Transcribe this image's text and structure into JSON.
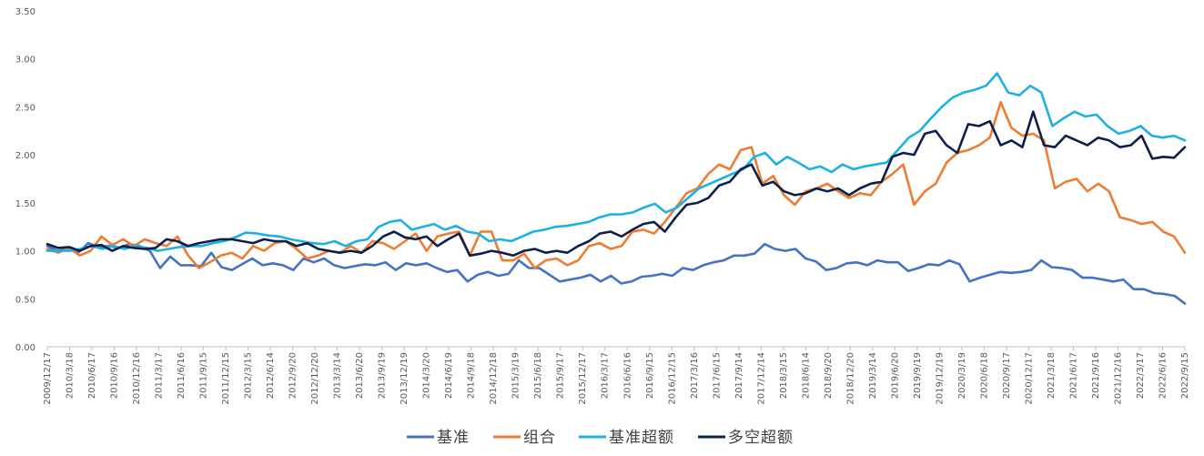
{
  "chart_data": {
    "type": "line",
    "title": "",
    "xlabel": "",
    "ylabel": "",
    "ylim": [
      0,
      3.5
    ],
    "y_ticks": [
      "0.00",
      "0.50",
      "1.00",
      "1.50",
      "2.00",
      "2.50",
      "3.00",
      "3.50"
    ],
    "grid": false,
    "legend_position": "bottom",
    "x_tick_labels": [
      "2009/12/17",
      "2010/3/18",
      "2010/6/17",
      "2010/9/16",
      "2010/12/16",
      "2011/3/17",
      "2011/6/16",
      "2011/9/15",
      "2011/12/15",
      "2012/3/15",
      "2012/6/14",
      "2012/9/20",
      "2012/12/20",
      "2013/3/14",
      "2013/6/20",
      "2013/9/19",
      "2013/12/19",
      "2014/3/20",
      "2014/6/19",
      "2014/9/18",
      "2014/12/18",
      "2015/3/19",
      "2015/6/18",
      "2015/9/17",
      "2015/12/17",
      "2016/3/17",
      "2016/6/16",
      "2016/9/15",
      "2016/12/15",
      "2017/3/16",
      "2017/6/15",
      "2017/9/14",
      "2017/12/14",
      "2018/3/15",
      "2018/6/14",
      "2018/9/20",
      "2018/12/20",
      "2019/3/14",
      "2019/6/20",
      "2019/9/19",
      "2019/12/19",
      "2020/3/19",
      "2020/6/18",
      "2020/9/17",
      "2020/12/17",
      "2021/3/18",
      "2021/6/17",
      "2021/9/16",
      "2021/12/16",
      "2022/3/17",
      "2022/6/16",
      "2022/9/15"
    ],
    "series": [
      {
        "name": "基准",
        "color": "#4472C4",
        "values": [
          1.05,
          1.0,
          1.02,
          0.98,
          1.08,
          1.04,
          1.05,
          1.03,
          1.07,
          1.05,
          1.0,
          0.82,
          0.94,
          0.85,
          0.85,
          0.84,
          0.98,
          0.83,
          0.8,
          0.86,
          0.92,
          0.85,
          0.87,
          0.85,
          0.8,
          0.92,
          0.88,
          0.92,
          0.85,
          0.82,
          0.84,
          0.86,
          0.85,
          0.88,
          0.8,
          0.87,
          0.85,
          0.87,
          0.82,
          0.78,
          0.8,
          0.68,
          0.75,
          0.78,
          0.74,
          0.76,
          0.9,
          0.82,
          0.82,
          0.75,
          0.68,
          0.7,
          0.72,
          0.75,
          0.68,
          0.74,
          0.66,
          0.68,
          0.73,
          0.74,
          0.76,
          0.74,
          0.82,
          0.8,
          0.85,
          0.88,
          0.9,
          0.95,
          0.95,
          0.97,
          1.07,
          1.02,
          1.0,
          1.02,
          0.92,
          0.89,
          0.8,
          0.82,
          0.87,
          0.88,
          0.85,
          0.9,
          0.88,
          0.88,
          0.79,
          0.82,
          0.86,
          0.85,
          0.9,
          0.86,
          0.68,
          0.72,
          0.75,
          0.78,
          0.77,
          0.78,
          0.8,
          0.9,
          0.83,
          0.82,
          0.8,
          0.72,
          0.72,
          0.7,
          0.68,
          0.7,
          0.6,
          0.6,
          0.56,
          0.55,
          0.53,
          0.45
        ]
      },
      {
        "name": "组合",
        "color": "#ED7D31",
        "values": [
          1.02,
          0.98,
          1.03,
          0.95,
          1.0,
          1.15,
          1.06,
          1.12,
          1.05,
          1.12,
          1.08,
          1.05,
          1.15,
          0.95,
          0.82,
          0.88,
          0.95,
          0.98,
          0.92,
          1.05,
          1.0,
          1.08,
          1.1,
          1.02,
          0.92,
          0.95,
          1.0,
          0.98,
          1.05,
          0.98,
          1.1,
          1.08,
          1.02,
          1.1,
          1.18,
          1.0,
          1.15,
          1.18,
          1.2,
          0.95,
          1.2,
          1.2,
          0.9,
          0.9,
          0.97,
          0.82,
          0.9,
          0.92,
          0.85,
          0.9,
          1.05,
          1.08,
          1.02,
          1.05,
          1.2,
          1.22,
          1.18,
          1.3,
          1.45,
          1.6,
          1.65,
          1.8,
          1.9,
          1.85,
          2.05,
          2.08,
          1.7,
          1.78,
          1.58,
          1.48,
          1.62,
          1.65,
          1.7,
          1.62,
          1.55,
          1.6,
          1.58,
          1.72,
          1.8,
          1.9,
          1.48,
          1.62,
          1.7,
          1.92,
          2.02,
          2.05,
          2.1,
          2.18,
          2.55,
          2.28,
          2.2,
          2.22,
          2.15,
          1.65,
          1.72,
          1.75,
          1.62,
          1.7,
          1.62,
          1.35,
          1.32,
          1.28,
          1.3,
          1.2,
          1.15,
          0.98
        ]
      },
      {
        "name": "基准超额",
        "color": "#1CB1E5",
        "values": [
          1.0,
          1.0,
          1.0,
          1.02,
          1.05,
          1.02,
          1.05,
          1.02,
          1.05,
          1.03,
          1.0,
          1.02,
          1.04,
          1.05,
          1.05,
          1.08,
          1.1,
          1.14,
          1.19,
          1.18,
          1.16,
          1.15,
          1.12,
          1.1,
          1.08,
          1.07,
          1.1,
          1.05,
          1.1,
          1.12,
          1.25,
          1.3,
          1.32,
          1.22,
          1.25,
          1.28,
          1.22,
          1.26,
          1.2,
          1.18,
          1.1,
          1.12,
          1.1,
          1.15,
          1.2,
          1.22,
          1.25,
          1.26,
          1.28,
          1.3,
          1.35,
          1.38,
          1.38,
          1.4,
          1.45,
          1.49,
          1.4,
          1.45,
          1.55,
          1.65,
          1.7,
          1.75,
          1.8,
          1.85,
          1.98,
          2.02,
          1.9,
          1.98,
          1.92,
          1.85,
          1.88,
          1.82,
          1.9,
          1.85,
          1.88,
          1.9,
          1.92,
          2.05,
          2.18,
          2.25,
          2.38,
          2.5,
          2.6,
          2.65,
          2.68,
          2.72,
          2.85,
          2.65,
          2.62,
          2.72,
          2.65,
          2.3,
          2.38,
          2.45,
          2.4,
          2.42,
          2.3,
          2.22,
          2.25,
          2.3,
          2.2,
          2.18,
          2.2,
          2.15
        ]
      },
      {
        "name": "多空超额",
        "color": "#0D1F4D",
        "values": [
          1.07,
          1.03,
          1.04,
          1.0,
          1.05,
          1.06,
          1.0,
          1.05,
          1.03,
          1.02,
          1.03,
          1.12,
          1.1,
          1.05,
          1.08,
          1.1,
          1.12,
          1.12,
          1.1,
          1.08,
          1.12,
          1.1,
          1.1,
          1.05,
          1.08,
          1.02,
          1.0,
          0.98,
          1.0,
          0.98,
          1.05,
          1.15,
          1.2,
          1.14,
          1.12,
          1.15,
          1.05,
          1.12,
          1.18,
          0.95,
          0.97,
          1.0,
          0.98,
          0.95,
          1.0,
          1.02,
          0.98,
          1.0,
          0.98,
          1.05,
          1.1,
          1.18,
          1.2,
          1.15,
          1.22,
          1.28,
          1.3,
          1.2,
          1.35,
          1.48,
          1.5,
          1.55,
          1.68,
          1.72,
          1.85,
          1.9,
          1.68,
          1.72,
          1.62,
          1.58,
          1.6,
          1.65,
          1.62,
          1.65,
          1.58,
          1.65,
          1.7,
          1.72,
          1.98,
          2.02,
          2.0,
          2.22,
          2.25,
          2.1,
          2.02,
          2.32,
          2.3,
          2.35,
          2.1,
          2.15,
          2.08,
          2.45,
          2.1,
          2.08,
          2.2,
          2.15,
          2.1,
          2.18,
          2.15,
          2.08,
          2.1,
          2.2,
          1.96,
          1.98,
          1.97,
          2.08
        ]
      }
    ]
  }
}
